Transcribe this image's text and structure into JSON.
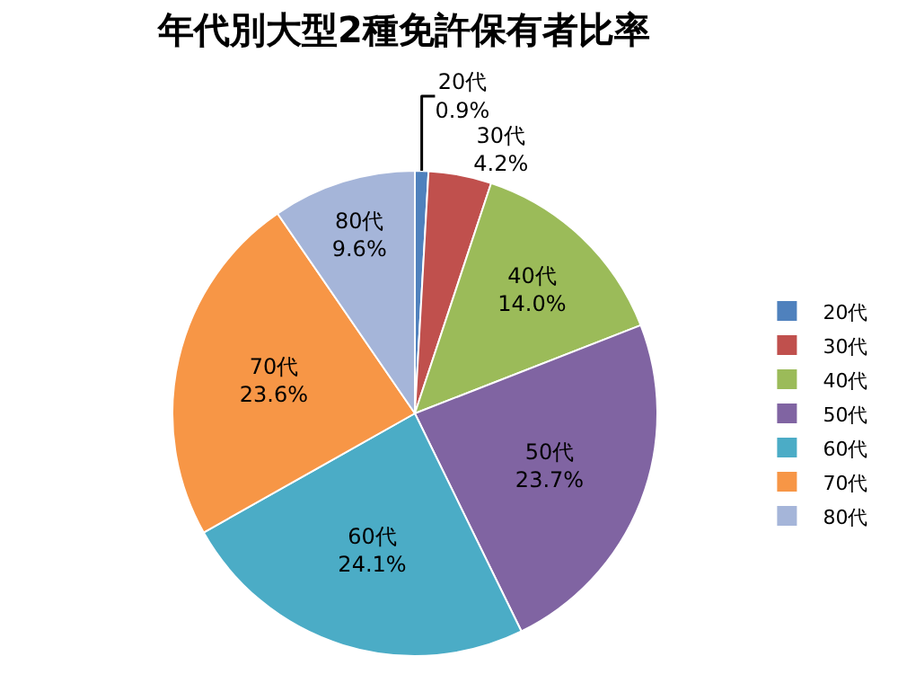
{
  "chart_data": {
    "type": "pie",
    "title": "年代別大型2種免許保有者比率",
    "categories": [
      "20代",
      "30代",
      "40代",
      "50代",
      "60代",
      "70代",
      "80代"
    ],
    "values": [
      0.9,
      4.2,
      14.0,
      23.7,
      24.1,
      23.6,
      9.6
    ],
    "value_labels": [
      "0.9%",
      "4.2%",
      "14.0%",
      "23.7%",
      "24.1%",
      "23.6%",
      "9.6%"
    ],
    "colors": [
      "#4f81bd",
      "#c0504d",
      "#9bbb59",
      "#8064a2",
      "#4bacc6",
      "#f79646",
      "#a5b5d9"
    ],
    "legend": "right"
  }
}
